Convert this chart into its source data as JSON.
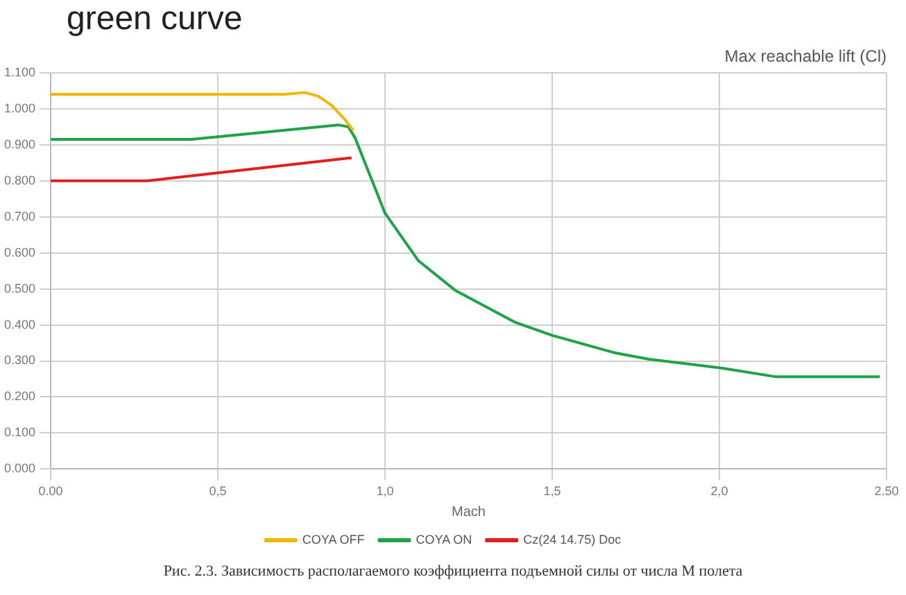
{
  "chart_data": {
    "type": "line",
    "title": "Max reachable lift (Cl)",
    "xlabel": "Mach",
    "annotations": [
      "green curve",
      "Рис. 2.3. Зависимость располагаемого коэффициента подъемной силы от числа M полета"
    ],
    "series": [
      {
        "name": "COYA OFF",
        "color": "#f2b705",
        "x": [
          0,
          0.7,
          0.76,
          0.8,
          0.84,
          0.88,
          0.905
        ],
        "values": [
          1.04,
          1.04,
          1.045,
          1.035,
          1.01,
          0.97,
          0.94
        ]
      },
      {
        "name": "COYA ON",
        "color": "#1fa347",
        "x": [
          0,
          0.42,
          0.86,
          0.89,
          0.91,
          0.94,
          0.97,
          1.0,
          1.1,
          1.21,
          1.39,
          1.5,
          1.69,
          1.79,
          2.01,
          2.17,
          2.48
        ],
        "values": [
          0.915,
          0.915,
          0.955,
          0.95,
          0.92,
          0.85,
          0.78,
          0.71,
          0.578,
          0.496,
          0.407,
          0.371,
          0.322,
          0.305,
          0.28,
          0.256,
          0.256
        ]
      },
      {
        "name": "Cz(24 14.75) Doc",
        "color": "#e02020",
        "x": [
          0,
          0.29,
          0.9
        ],
        "values": [
          0.8,
          0.8,
          0.864
        ]
      }
    ],
    "xlim": [
      0,
      2.5
    ],
    "xticks": [
      {
        "value": 0,
        "label": "0.00"
      },
      {
        "value": 0.5,
        "label": "0,5"
      },
      {
        "value": 1,
        "label": "1,0"
      },
      {
        "value": 1.5,
        "label": "1,5"
      },
      {
        "value": 2,
        "label": "2,0"
      },
      {
        "value": 2.5,
        "label": "2.50"
      }
    ],
    "ylim": [
      0,
      1.1
    ],
    "yticks": [
      {
        "value": 0,
        "label": "0.000"
      },
      {
        "value": 0.1,
        "label": "0.100"
      },
      {
        "value": 0.2,
        "label": "0.200"
      },
      {
        "value": 0.3,
        "label": "0.300"
      },
      {
        "value": 0.4,
        "label": "0.400"
      },
      {
        "value": 0.5,
        "label": "0.500"
      },
      {
        "value": 0.6,
        "label": "0.600"
      },
      {
        "value": 0.7,
        "label": "0.700"
      },
      {
        "value": 0.8,
        "label": "0.800"
      },
      {
        "value": 0.9,
        "label": "0.900"
      },
      {
        "value": 1.0,
        "label": "1.000"
      },
      {
        "value": 1.1,
        "label": "1.100"
      }
    ],
    "grid": true,
    "legend": "bottom",
    "marker": "none",
    "line_style": "solid"
  }
}
